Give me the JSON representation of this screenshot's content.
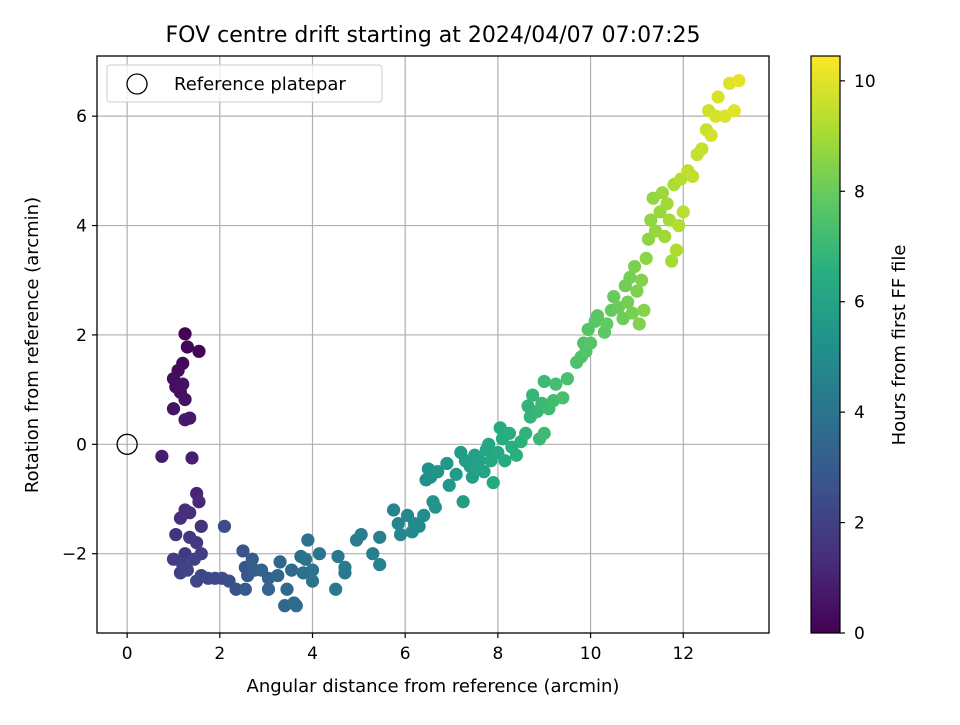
{
  "chart_data": {
    "type": "scatter",
    "title": "FOV centre drift starting at 2024/04/07 07:07:25",
    "xlabel": "Angular distance from reference (arcmin)",
    "ylabel": "Rotation from reference (arcmin)",
    "xlim": [
      -0.65,
      13.85
    ],
    "ylim": [
      -3.45,
      7.1
    ],
    "xticks": [
      0,
      2,
      4,
      6,
      8,
      10,
      12
    ],
    "yticks": [
      -2,
      0,
      2,
      4,
      6
    ],
    "xtick_labels": [
      "0",
      "2",
      "4",
      "6",
      "8",
      "10",
      "12"
    ],
    "ytick_labels": [
      "−2",
      "0",
      "2",
      "4",
      "6"
    ],
    "grid": true,
    "legend": {
      "placement": "top-left",
      "entries": [
        "Reference platepar"
      ]
    },
    "reference_point": {
      "x": 0,
      "y": 0,
      "label": "Reference platepar"
    },
    "colorbar": {
      "label": "Hours from first FF file",
      "colormap": "viridis",
      "range": [
        0,
        10.45
      ],
      "ticks": [
        0,
        2,
        4,
        6,
        8,
        10
      ],
      "tick_labels": [
        "0",
        "2",
        "4",
        "6",
        "8",
        "10"
      ]
    },
    "points": [
      {
        "x": 1.25,
        "y": 2.02,
        "c": 0.05
      },
      {
        "x": 1.55,
        "y": 1.7,
        "c": 0.1
      },
      {
        "x": 1.3,
        "y": 1.78,
        "c": 0.15
      },
      {
        "x": 1.2,
        "y": 1.48,
        "c": 0.2
      },
      {
        "x": 1.1,
        "y": 1.35,
        "c": 0.3
      },
      {
        "x": 1.0,
        "y": 1.2,
        "c": 0.35
      },
      {
        "x": 1.05,
        "y": 1.05,
        "c": 0.4
      },
      {
        "x": 1.15,
        "y": 0.95,
        "c": 0.45
      },
      {
        "x": 1.25,
        "y": 0.82,
        "c": 0.5
      },
      {
        "x": 1.2,
        "y": 1.1,
        "c": 0.55
      },
      {
        "x": 1.0,
        "y": 0.65,
        "c": 0.6
      },
      {
        "x": 1.35,
        "y": 0.48,
        "c": 0.7
      },
      {
        "x": 1.25,
        "y": 0.45,
        "c": 0.75
      },
      {
        "x": 0.75,
        "y": -0.22,
        "c": 0.85
      },
      {
        "x": 1.4,
        "y": -0.25,
        "c": 0.95
      },
      {
        "x": 1.5,
        "y": -0.9,
        "c": 1.1
      },
      {
        "x": 1.55,
        "y": -1.05,
        "c": 1.2
      },
      {
        "x": 1.25,
        "y": -1.2,
        "c": 1.3
      },
      {
        "x": 1.15,
        "y": -1.35,
        "c": 1.4
      },
      {
        "x": 1.35,
        "y": -1.25,
        "c": 1.45
      },
      {
        "x": 1.6,
        "y": -1.5,
        "c": 1.55
      },
      {
        "x": 1.05,
        "y": -1.65,
        "c": 1.6
      },
      {
        "x": 1.35,
        "y": -1.7,
        "c": 1.7
      },
      {
        "x": 1.5,
        "y": -1.8,
        "c": 1.75
      },
      {
        "x": 1.25,
        "y": -2.0,
        "c": 1.8
      },
      {
        "x": 1.6,
        "y": -2.0,
        "c": 1.9
      },
      {
        "x": 1.0,
        "y": -2.1,
        "c": 1.95
      },
      {
        "x": 1.2,
        "y": -2.2,
        "c": 2.0
      },
      {
        "x": 1.15,
        "y": -2.35,
        "c": 2.05
      },
      {
        "x": 1.45,
        "y": -2.1,
        "c": 2.1
      },
      {
        "x": 1.3,
        "y": -2.3,
        "c": 2.15
      },
      {
        "x": 1.5,
        "y": -2.5,
        "c": 2.2
      },
      {
        "x": 1.6,
        "y": -2.4,
        "c": 2.25
      },
      {
        "x": 1.75,
        "y": -2.45,
        "c": 2.3
      },
      {
        "x": 1.9,
        "y": -2.45,
        "c": 2.35
      },
      {
        "x": 2.05,
        "y": -2.45,
        "c": 2.4
      },
      {
        "x": 2.1,
        "y": -1.5,
        "c": 2.45
      },
      {
        "x": 2.2,
        "y": -2.5,
        "c": 2.5
      },
      {
        "x": 2.35,
        "y": -2.65,
        "c": 2.6
      },
      {
        "x": 2.5,
        "y": -1.95,
        "c": 2.7
      },
      {
        "x": 2.55,
        "y": -2.25,
        "c": 2.8
      },
      {
        "x": 2.6,
        "y": -2.4,
        "c": 2.9
      },
      {
        "x": 2.55,
        "y": -2.65,
        "c": 3.0
      },
      {
        "x": 2.7,
        "y": -2.1,
        "c": 3.1
      },
      {
        "x": 2.75,
        "y": -2.3,
        "c": 3.15
      },
      {
        "x": 2.9,
        "y": -2.3,
        "c": 3.25
      },
      {
        "x": 3.05,
        "y": -2.45,
        "c": 3.3
      },
      {
        "x": 3.05,
        "y": -2.65,
        "c": 3.4
      },
      {
        "x": 3.25,
        "y": -2.4,
        "c": 3.45
      },
      {
        "x": 3.3,
        "y": -2.15,
        "c": 3.5
      },
      {
        "x": 3.4,
        "y": -2.95,
        "c": 3.55
      },
      {
        "x": 3.45,
        "y": -2.65,
        "c": 3.6
      },
      {
        "x": 3.55,
        "y": -2.3,
        "c": 3.65
      },
      {
        "x": 3.6,
        "y": -2.9,
        "c": 3.7
      },
      {
        "x": 3.65,
        "y": -2.95,
        "c": 3.75
      },
      {
        "x": 3.75,
        "y": -2.05,
        "c": 3.8
      },
      {
        "x": 3.8,
        "y": -2.35,
        "c": 3.85
      },
      {
        "x": 3.85,
        "y": -2.1,
        "c": 3.9
      },
      {
        "x": 3.9,
        "y": -1.75,
        "c": 3.95
      },
      {
        "x": 4.0,
        "y": -2.3,
        "c": 4.0
      },
      {
        "x": 4.0,
        "y": -2.5,
        "c": 4.05
      },
      {
        "x": 4.15,
        "y": -2.0,
        "c": 4.1
      },
      {
        "x": 4.5,
        "y": -2.65,
        "c": 4.2
      },
      {
        "x": 4.55,
        "y": -2.05,
        "c": 4.25
      },
      {
        "x": 4.7,
        "y": -2.25,
        "c": 4.3
      },
      {
        "x": 4.7,
        "y": -2.35,
        "c": 4.35
      },
      {
        "x": 4.95,
        "y": -1.75,
        "c": 4.4
      },
      {
        "x": 5.05,
        "y": -1.65,
        "c": 4.45
      },
      {
        "x": 5.3,
        "y": -2.0,
        "c": 4.5
      },
      {
        "x": 5.45,
        "y": -2.2,
        "c": 4.55
      },
      {
        "x": 5.45,
        "y": -1.7,
        "c": 4.6
      },
      {
        "x": 5.75,
        "y": -1.2,
        "c": 4.7
      },
      {
        "x": 5.85,
        "y": -1.45,
        "c": 4.8
      },
      {
        "x": 5.9,
        "y": -1.65,
        "c": 4.85
      },
      {
        "x": 6.05,
        "y": -1.3,
        "c": 4.9
      },
      {
        "x": 6.15,
        "y": -1.6,
        "c": 4.95
      },
      {
        "x": 6.2,
        "y": -1.45,
        "c": 5.0
      },
      {
        "x": 6.3,
        "y": -1.5,
        "c": 5.05
      },
      {
        "x": 6.4,
        "y": -1.3,
        "c": 5.1
      },
      {
        "x": 6.45,
        "y": -0.65,
        "c": 5.2
      },
      {
        "x": 6.5,
        "y": -0.45,
        "c": 5.25
      },
      {
        "x": 6.55,
        "y": -0.6,
        "c": 5.3
      },
      {
        "x": 6.6,
        "y": -1.05,
        "c": 5.35
      },
      {
        "x": 6.65,
        "y": -1.15,
        "c": 5.4
      },
      {
        "x": 6.7,
        "y": -0.5,
        "c": 5.45
      },
      {
        "x": 6.9,
        "y": -0.35,
        "c": 5.55
      },
      {
        "x": 6.95,
        "y": -0.75,
        "c": 5.6
      },
      {
        "x": 7.1,
        "y": -0.55,
        "c": 5.65
      },
      {
        "x": 7.2,
        "y": -0.15,
        "c": 5.7
      },
      {
        "x": 7.25,
        "y": -1.05,
        "c": 5.75
      },
      {
        "x": 7.3,
        "y": -0.3,
        "c": 5.8
      },
      {
        "x": 7.4,
        "y": -0.4,
        "c": 5.85
      },
      {
        "x": 7.45,
        "y": -0.6,
        "c": 5.9
      },
      {
        "x": 7.5,
        "y": -0.2,
        "c": 5.95
      },
      {
        "x": 7.55,
        "y": -0.45,
        "c": 6.0
      },
      {
        "x": 7.6,
        "y": -0.3,
        "c": 6.05
      },
      {
        "x": 7.7,
        "y": -0.5,
        "c": 6.1
      },
      {
        "x": 7.75,
        "y": -0.1,
        "c": 6.15
      },
      {
        "x": 7.8,
        "y": 0.0,
        "c": 6.2
      },
      {
        "x": 7.85,
        "y": -0.3,
        "c": 6.25
      },
      {
        "x": 7.9,
        "y": -0.7,
        "c": 6.3
      },
      {
        "x": 8.0,
        "y": -0.15,
        "c": 6.35
      },
      {
        "x": 8.05,
        "y": 0.3,
        "c": 6.4
      },
      {
        "x": 8.1,
        "y": 0.1,
        "c": 6.45
      },
      {
        "x": 8.15,
        "y": -0.3,
        "c": 6.5
      },
      {
        "x": 8.25,
        "y": 0.2,
        "c": 6.55
      },
      {
        "x": 8.3,
        "y": -0.05,
        "c": 6.6
      },
      {
        "x": 8.4,
        "y": -0.2,
        "c": 6.65
      },
      {
        "x": 8.5,
        "y": 0.05,
        "c": 6.7
      },
      {
        "x": 8.6,
        "y": 0.2,
        "c": 6.75
      },
      {
        "x": 8.65,
        "y": 0.7,
        "c": 6.8
      },
      {
        "x": 8.7,
        "y": 0.5,
        "c": 6.85
      },
      {
        "x": 8.75,
        "y": 0.9,
        "c": 6.9
      },
      {
        "x": 8.85,
        "y": 0.6,
        "c": 6.95
      },
      {
        "x": 8.9,
        "y": 0.1,
        "c": 7.0
      },
      {
        "x": 8.95,
        "y": 0.75,
        "c": 7.05
      },
      {
        "x": 9.0,
        "y": 1.15,
        "c": 7.1
      },
      {
        "x": 9.0,
        "y": 0.2,
        "c": 7.15
      },
      {
        "x": 9.1,
        "y": 0.65,
        "c": 7.2
      },
      {
        "x": 9.2,
        "y": 0.8,
        "c": 7.25
      },
      {
        "x": 9.25,
        "y": 1.1,
        "c": 7.3
      },
      {
        "x": 9.4,
        "y": 0.85,
        "c": 7.35
      },
      {
        "x": 9.5,
        "y": 1.2,
        "c": 7.4
      },
      {
        "x": 9.7,
        "y": 1.5,
        "c": 7.45
      },
      {
        "x": 9.8,
        "y": 1.6,
        "c": 7.5
      },
      {
        "x": 9.85,
        "y": 1.85,
        "c": 7.55
      },
      {
        "x": 9.9,
        "y": 1.7,
        "c": 7.6
      },
      {
        "x": 9.95,
        "y": 2.1,
        "c": 7.65
      },
      {
        "x": 10.0,
        "y": 1.85,
        "c": 7.7
      },
      {
        "x": 10.1,
        "y": 2.25,
        "c": 7.75
      },
      {
        "x": 10.15,
        "y": 2.35,
        "c": 7.8
      },
      {
        "x": 10.3,
        "y": 2.05,
        "c": 7.85
      },
      {
        "x": 10.35,
        "y": 2.2,
        "c": 7.9
      },
      {
        "x": 10.45,
        "y": 2.45,
        "c": 7.95
      },
      {
        "x": 10.5,
        "y": 2.7,
        "c": 8.0
      },
      {
        "x": 10.6,
        "y": 2.5,
        "c": 8.05
      },
      {
        "x": 10.7,
        "y": 2.3,
        "c": 8.1
      },
      {
        "x": 10.75,
        "y": 2.9,
        "c": 8.15
      },
      {
        "x": 10.8,
        "y": 2.6,
        "c": 8.2
      },
      {
        "x": 10.85,
        "y": 3.05,
        "c": 8.25
      },
      {
        "x": 10.9,
        "y": 2.4,
        "c": 8.3
      },
      {
        "x": 10.95,
        "y": 3.25,
        "c": 8.35
      },
      {
        "x": 11.0,
        "y": 2.8,
        "c": 8.4
      },
      {
        "x": 11.05,
        "y": 2.2,
        "c": 8.45
      },
      {
        "x": 11.1,
        "y": 3.0,
        "c": 8.5
      },
      {
        "x": 11.15,
        "y": 2.45,
        "c": 8.55
      },
      {
        "x": 11.2,
        "y": 3.4,
        "c": 8.6
      },
      {
        "x": 11.25,
        "y": 3.75,
        "c": 8.65
      },
      {
        "x": 11.3,
        "y": 4.1,
        "c": 8.7
      },
      {
        "x": 11.35,
        "y": 4.5,
        "c": 8.75
      },
      {
        "x": 11.4,
        "y": 3.9,
        "c": 8.8
      },
      {
        "x": 11.5,
        "y": 4.25,
        "c": 8.85
      },
      {
        "x": 11.55,
        "y": 4.6,
        "c": 8.9
      },
      {
        "x": 11.6,
        "y": 3.8,
        "c": 8.95
      },
      {
        "x": 11.65,
        "y": 4.4,
        "c": 9.0
      },
      {
        "x": 11.7,
        "y": 4.1,
        "c": 9.05
      },
      {
        "x": 11.75,
        "y": 3.35,
        "c": 9.1
      },
      {
        "x": 11.8,
        "y": 4.75,
        "c": 9.15
      },
      {
        "x": 11.85,
        "y": 3.55,
        "c": 9.2
      },
      {
        "x": 11.9,
        "y": 4.0,
        "c": 9.25
      },
      {
        "x": 11.95,
        "y": 4.85,
        "c": 9.3
      },
      {
        "x": 12.0,
        "y": 4.25,
        "c": 9.35
      },
      {
        "x": 12.1,
        "y": 5.0,
        "c": 9.45
      },
      {
        "x": 12.2,
        "y": 4.9,
        "c": 9.5
      },
      {
        "x": 12.3,
        "y": 5.3,
        "c": 9.55
      },
      {
        "x": 12.4,
        "y": 5.4,
        "c": 9.6
      },
      {
        "x": 12.5,
        "y": 5.75,
        "c": 9.65
      },
      {
        "x": 12.55,
        "y": 6.1,
        "c": 9.7
      },
      {
        "x": 12.6,
        "y": 5.65,
        "c": 9.75
      },
      {
        "x": 12.7,
        "y": 6.0,
        "c": 9.8
      },
      {
        "x": 12.75,
        "y": 6.35,
        "c": 9.85
      },
      {
        "x": 12.9,
        "y": 6.0,
        "c": 9.9
      },
      {
        "x": 13.0,
        "y": 6.6,
        "c": 9.95
      },
      {
        "x": 13.1,
        "y": 6.1,
        "c": 10.0
      },
      {
        "x": 13.2,
        "y": 6.65,
        "c": 10.1
      }
    ]
  },
  "colors": {
    "background": "#ffffff",
    "axis": "#000000",
    "grid": "#b0b0b0",
    "legend_border": "#cccccc"
  }
}
